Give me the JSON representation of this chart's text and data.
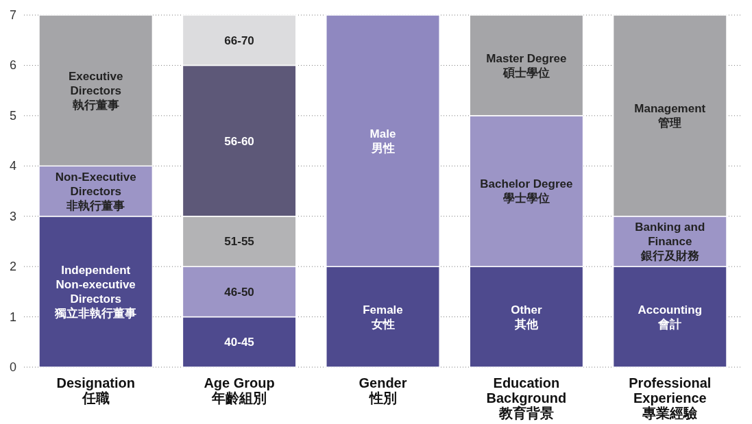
{
  "chart_data": {
    "type": "bar",
    "stacked": true,
    "categories": [
      "Designation\n任職",
      "Age Group\n年齡組別",
      "Gender\n性別",
      "Education\nBackground\n教育背景",
      "Professional\nExperience\n專業經驗"
    ],
    "series": [
      {
        "name": "Independent\nNon-executive\nDirectors\n獨立非執行董事",
        "color": "#4e4a8e",
        "values": [
          3,
          null,
          null,
          null,
          null
        ]
      },
      {
        "name": "Non-Executive\nDirectors\n非執行董事",
        "color": "#9c95c6",
        "values": [
          1,
          null,
          null,
          null,
          null
        ]
      },
      {
        "name": "Executive\nDirectors\n執行董事",
        "color": "#a5a5a8",
        "values": [
          3,
          null,
          null,
          null,
          null
        ]
      },
      {
        "name": "40-45",
        "color": "#4e4a8e",
        "values": [
          null,
          1,
          null,
          null,
          null
        ]
      },
      {
        "name": "46-50",
        "color": "#9c95c6",
        "values": [
          null,
          1,
          null,
          null,
          null
        ]
      },
      {
        "name": "51-55",
        "color": "#b3b3b5",
        "values": [
          null,
          1,
          null,
          null,
          null
        ]
      },
      {
        "name": "56-60",
        "color": "#5d5878",
        "values": [
          null,
          3,
          null,
          null,
          null
        ]
      },
      {
        "name": "66-70",
        "color": "#dcdcde",
        "values": [
          null,
          1,
          null,
          null,
          null
        ]
      },
      {
        "name": "Female\n女性",
        "color": "#4e4a8e",
        "values": [
          null,
          null,
          2,
          null,
          null
        ]
      },
      {
        "name": "Male\n男性",
        "color": "#8f88c0",
        "values": [
          null,
          null,
          5,
          null,
          null
        ]
      },
      {
        "name": "Other\n其他",
        "color": "#4e4a8e",
        "values": [
          null,
          null,
          null,
          2,
          null
        ]
      },
      {
        "name": "Bachelor Degree\n學士學位",
        "color": "#9c95c6",
        "values": [
          null,
          null,
          null,
          3,
          null
        ]
      },
      {
        "name": "Master Degree\n碩士學位",
        "color": "#a5a5a8",
        "values": [
          null,
          null,
          null,
          2,
          null
        ]
      },
      {
        "name": "Accounting\n會計",
        "color": "#4e4a8e",
        "values": [
          null,
          null,
          null,
          null,
          2
        ]
      },
      {
        "name": "Banking and\nFinance\n銀行及財務",
        "color": "#9c95c6",
        "values": [
          null,
          null,
          null,
          null,
          1
        ]
      },
      {
        "name": "Management\n管理",
        "color": "#a5a5a8",
        "values": [
          null,
          null,
          null,
          null,
          4
        ]
      }
    ],
    "ylim": [
      0,
      7
    ],
    "yticks": [
      0,
      1,
      2,
      3,
      4,
      5,
      6,
      7
    ],
    "grid": "y"
  }
}
